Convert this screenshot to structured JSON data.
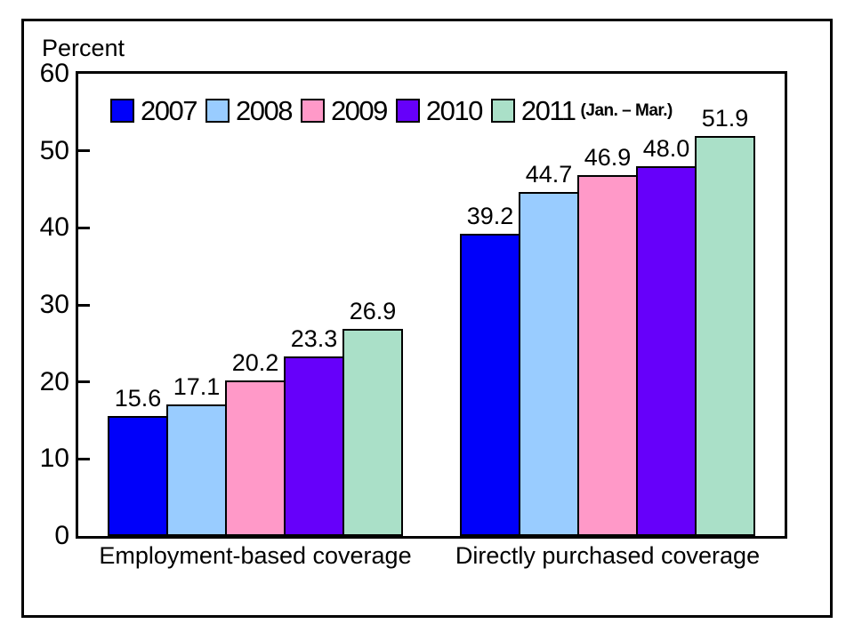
{
  "figure": {
    "background": "#FFFFFF",
    "border_color": "#000000"
  },
  "chart_data": {
    "type": "bar",
    "title": "",
    "ylabel": "Percent",
    "xlabel": "",
    "ylim": [
      0,
      60
    ],
    "yticks": [
      0,
      10,
      20,
      30,
      40,
      50,
      60
    ],
    "grid": false,
    "legend_position": "top-inside",
    "bar_label_decimals": 1,
    "categories": [
      "Employment-based coverage",
      "Directly purchased coverage"
    ],
    "series": [
      {
        "name": "2007",
        "legend_suffix": "",
        "color": "#0000FA",
        "values": [
          15.6,
          39.2
        ]
      },
      {
        "name": "2008",
        "legend_suffix": "",
        "color": "#99CCFF",
        "values": [
          17.1,
          44.7
        ]
      },
      {
        "name": "2009",
        "legend_suffix": "",
        "color": "#FF99C8",
        "values": [
          20.2,
          46.9
        ]
      },
      {
        "name": "2010",
        "legend_suffix": "",
        "color": "#6600FA",
        "values": [
          23.3,
          48.0
        ]
      },
      {
        "name": "2011",
        "legend_suffix": "(Jan. – Mar.)",
        "color": "#AAE0C8",
        "values": [
          26.9,
          51.9
        ]
      }
    ]
  }
}
